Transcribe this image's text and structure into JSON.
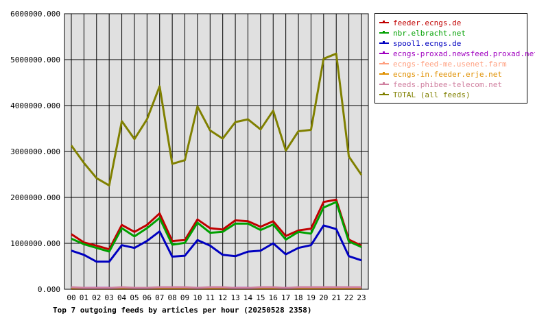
{
  "chart_data": {
    "type": "line",
    "title": "Top 7 outgoing feeds by articles per hour (20250528 2358)",
    "xlabel": "",
    "ylabel": "",
    "categories": [
      "00",
      "01",
      "02",
      "03",
      "04",
      "05",
      "06",
      "07",
      "08",
      "09",
      "10",
      "11",
      "12",
      "13",
      "14",
      "15",
      "16",
      "17",
      "18",
      "19",
      "20",
      "21",
      "22",
      "23"
    ],
    "ylim": [
      0,
      6000000
    ],
    "yticks": [
      0,
      1000000,
      2000000,
      3000000,
      4000000,
      5000000,
      6000000
    ],
    "ytick_labels": [
      "0.000",
      "1000000.000",
      "2000000.000",
      "3000000.000",
      "4000000.000",
      "5000000.000",
      "6000000.000"
    ],
    "grid": true,
    "legend_position": "right",
    "background_color": "#e0e0e0",
    "series": [
      {
        "name": "feeder.ecngs.de",
        "color": "#c00000",
        "values": [
          1200000,
          1020000,
          950000,
          870000,
          1400000,
          1250000,
          1400000,
          1650000,
          1050000,
          1070000,
          1520000,
          1330000,
          1300000,
          1500000,
          1480000,
          1360000,
          1480000,
          1160000,
          1280000,
          1320000,
          1900000,
          1950000,
          1080000,
          950000
        ]
      },
      {
        "name": "nbr.elbracht.net",
        "color": "#00a000",
        "values": [
          1100000,
          980000,
          900000,
          820000,
          1330000,
          1150000,
          1330000,
          1550000,
          970000,
          1010000,
          1450000,
          1230000,
          1250000,
          1430000,
          1430000,
          1290000,
          1410000,
          1080000,
          1250000,
          1210000,
          1780000,
          1900000,
          1040000,
          920000
        ]
      },
      {
        "name": "spool1.ecngs.de",
        "color": "#0000c0",
        "values": [
          840000,
          750000,
          600000,
          600000,
          960000,
          900000,
          1050000,
          1260000,
          710000,
          730000,
          1070000,
          950000,
          750000,
          720000,
          820000,
          840000,
          1000000,
          760000,
          900000,
          960000,
          1390000,
          1310000,
          720000,
          630000
        ]
      },
      {
        "name": "ecngs-proxad.newsfeed.proxad.net",
        "color": "#a000c0",
        "values": [
          30000,
          30000,
          30000,
          30000,
          30000,
          30000,
          30000,
          30000,
          30000,
          30000,
          30000,
          30000,
          30000,
          30000,
          30000,
          30000,
          30000,
          30000,
          30000,
          30000,
          30000,
          30000,
          30000,
          30000
        ]
      },
      {
        "name": "ecngs-feed-me.usenet.farm",
        "color": "#ffa080",
        "values": [
          20000,
          20000,
          20000,
          20000,
          20000,
          20000,
          20000,
          20000,
          20000,
          20000,
          20000,
          20000,
          20000,
          20000,
          20000,
          20000,
          20000,
          20000,
          20000,
          20000,
          20000,
          20000,
          20000,
          20000
        ]
      },
      {
        "name": "ecngs-in.feeder.erje.net",
        "color": "#e09000",
        "values": [
          10000,
          10000,
          10000,
          10000,
          10000,
          10000,
          10000,
          10000,
          10000,
          10000,
          10000,
          10000,
          10000,
          10000,
          10000,
          10000,
          10000,
          10000,
          10000,
          10000,
          10000,
          10000,
          10000,
          10000
        ]
      },
      {
        "name": "feeds.phibee-telecom.net",
        "color": "#d080a0",
        "values": [
          45000,
          30000,
          25000,
          25000,
          45000,
          30000,
          30000,
          45000,
          45000,
          45000,
          30000,
          45000,
          45000,
          25000,
          25000,
          45000,
          45000,
          25000,
          45000,
          45000,
          45000,
          45000,
          45000,
          45000
        ]
      },
      {
        "name": "TOTAL (all feeds)",
        "color": "#808000",
        "values": [
          3130000,
          2750000,
          2420000,
          2260000,
          3660000,
          3270000,
          3700000,
          4420000,
          2730000,
          2810000,
          3980000,
          3460000,
          3280000,
          3640000,
          3700000,
          3480000,
          3890000,
          3020000,
          3440000,
          3470000,
          5020000,
          5130000,
          2890000,
          2490000
        ]
      }
    ]
  }
}
